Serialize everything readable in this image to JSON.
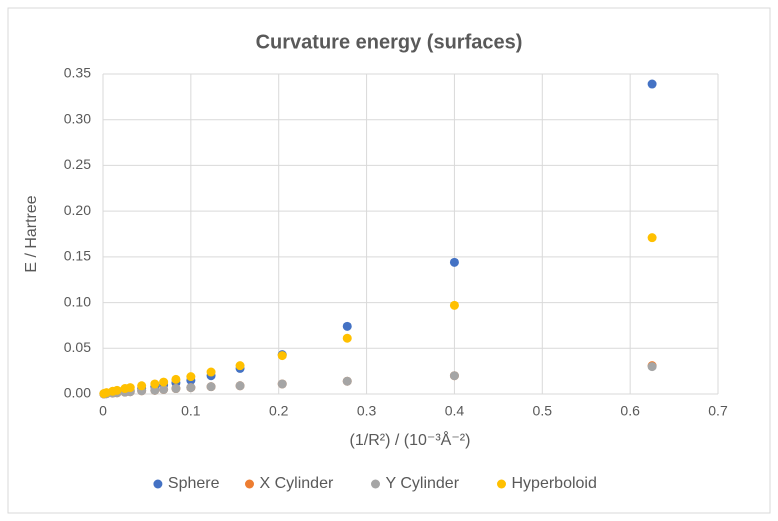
{
  "chart_data": {
    "type": "scatter",
    "title": "Curvature energy (surfaces)",
    "x_label": "(1/R²) / (10⁻³Å⁻²)",
    "y_label": "E  / Hartree",
    "x": [
      0.625,
      0.4,
      0.278,
      0.204,
      0.156,
      0.123,
      0.1,
      0.083,
      0.069,
      0.059,
      0.044,
      0.031,
      0.025,
      0.016,
      0.011,
      0.004,
      0.001
    ],
    "series": [
      {
        "name": "Sphere",
        "color": "#4472c4",
        "values": [
          0.339,
          0.144,
          0.074,
          0.043,
          0.028,
          0.02,
          0.015,
          0.012,
          0.01,
          0.008,
          0.006,
          0.004,
          0.003,
          0.002,
          0.0015,
          0.0005,
          0.0001
        ]
      },
      {
        "name": "X Cylinder",
        "color": "#ed7d31",
        "values": [
          0.031,
          0.02,
          0.014,
          0.011,
          0.009,
          0.008,
          0.007,
          0.006,
          0.005,
          0.004,
          0.0035,
          0.0025,
          0.002,
          0.0013,
          0.001,
          0.0003,
          0.0001
        ]
      },
      {
        "name": "Y Cylinder",
        "color": "#a5a5a5",
        "values": [
          0.03,
          0.02,
          0.014,
          0.011,
          0.009,
          0.008,
          0.007,
          0.006,
          0.005,
          0.004,
          0.0035,
          0.0025,
          0.002,
          0.0013,
          0.001,
          0.0003,
          0.0001
        ]
      },
      {
        "name": "Hyperboloid",
        "color": "#ffc000",
        "values": [
          0.171,
          0.097,
          0.061,
          0.042,
          0.031,
          0.024,
          0.019,
          0.016,
          0.013,
          0.011,
          0.009,
          0.007,
          0.006,
          0.004,
          0.003,
          0.0015,
          0.0005
        ]
      }
    ],
    "xlim": [
      0,
      0.7
    ],
    "xticks": [
      0,
      0.1,
      0.2,
      0.3,
      0.4,
      0.5,
      0.6,
      0.7
    ],
    "ylim": [
      0,
      0.35
    ],
    "yticks": [
      {
        "value": 0,
        "label": "0.00"
      },
      {
        "value": 0.05,
        "label": "0.05"
      },
      {
        "value": 0.1,
        "label": "0.10"
      },
      {
        "value": 0.15,
        "label": "0.15"
      },
      {
        "value": 0.2,
        "label": "0.20"
      },
      {
        "value": 0.25,
        "label": "0.25"
      },
      {
        "value": 0.3,
        "label": "0.30"
      },
      {
        "value": 0.35,
        "label": "0.35"
      }
    ],
    "grid": true,
    "legend": "bottom"
  }
}
